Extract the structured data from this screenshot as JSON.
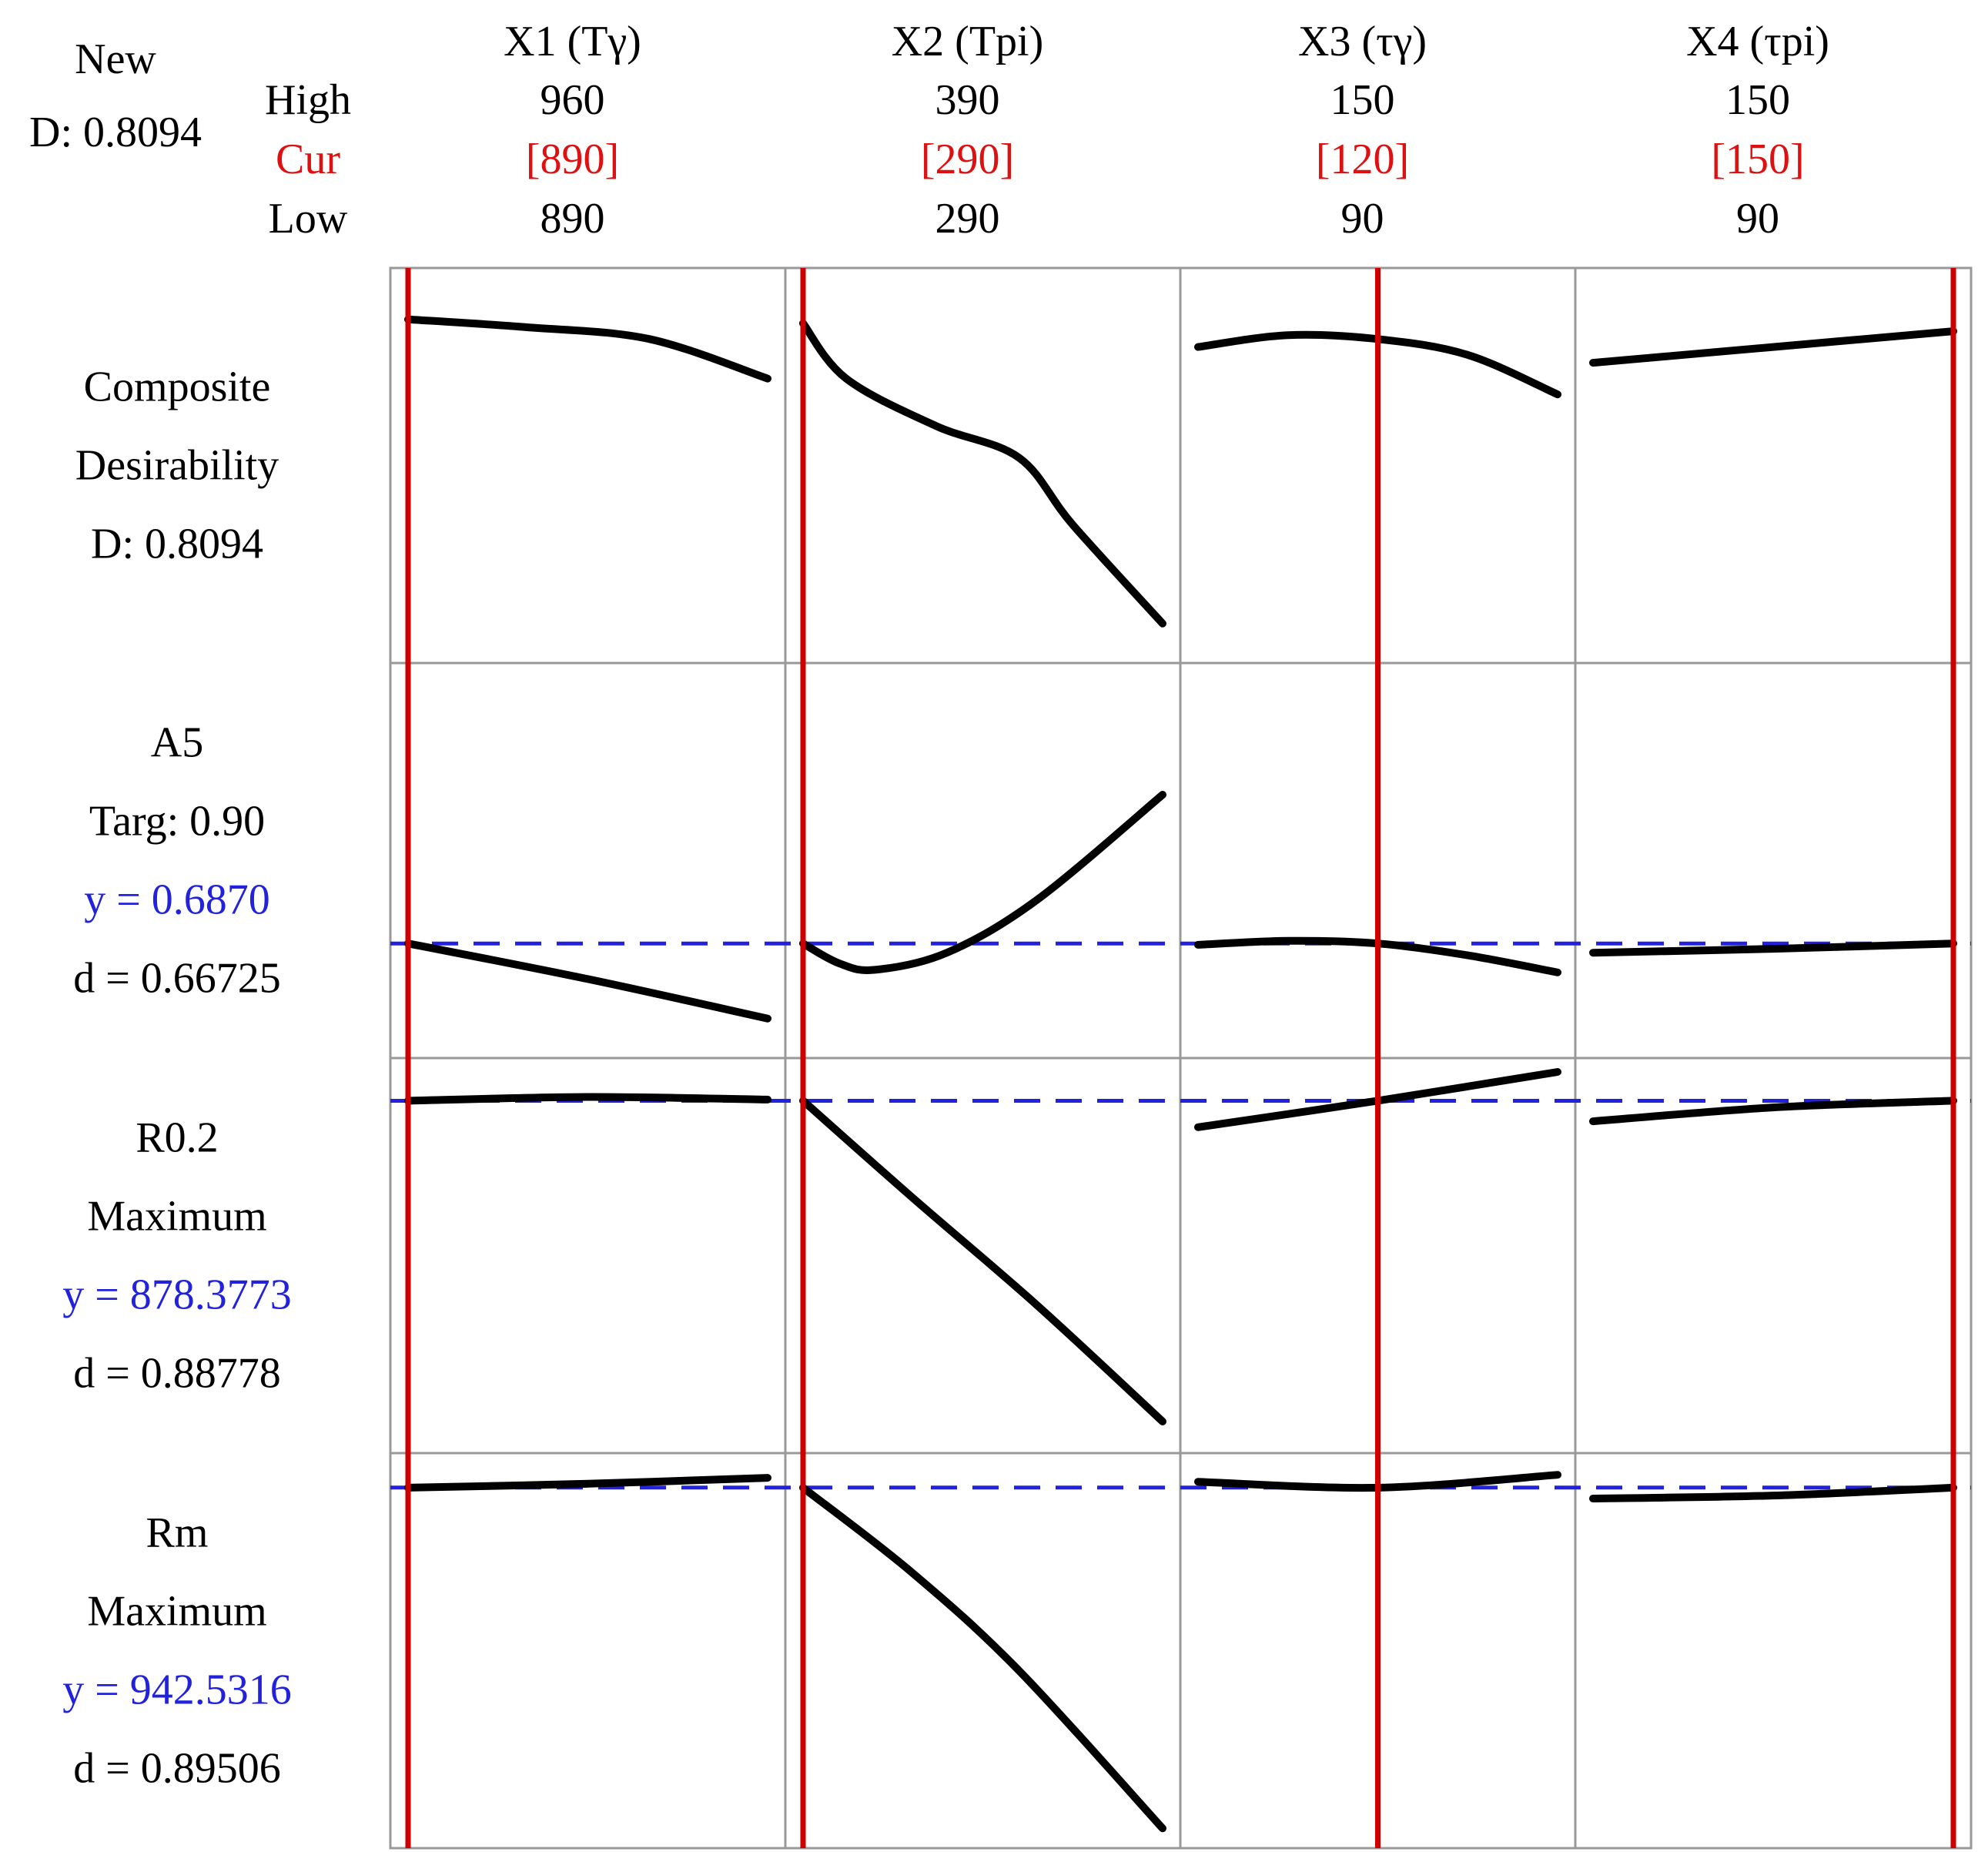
{
  "header": {
    "new_label": "New",
    "new_d": "D: 0.8094",
    "high_label": "High",
    "cur_label": "Cur",
    "low_label": "Low"
  },
  "factors": [
    {
      "name": "X1 (Tγ)",
      "high": "960",
      "cur": "[890]",
      "low": "890"
    },
    {
      "name": "X2 (Tpi)",
      "high": "390",
      "cur": "[290]",
      "low": "290"
    },
    {
      "name": "X3 (τγ)",
      "high": "150",
      "cur": "[120]",
      "low": "90"
    },
    {
      "name": "X4 (τpi)",
      "high": "150",
      "cur": "[150]",
      "low": "90"
    }
  ],
  "responses": [
    {
      "lines": [
        "Composite",
        "Desirability",
        "D: 0.8094"
      ],
      "colors": [
        "#000000",
        "#000000",
        "#000000"
      ]
    },
    {
      "lines": [
        "A5",
        "Targ: 0.90",
        "y = 0.6870",
        "d = 0.66725"
      ],
      "colors": [
        "#000000",
        "#000000",
        "#2222dd",
        "#000000"
      ]
    },
    {
      "lines": [
        "R0.2",
        "Maximum",
        "y = 878.3773",
        "d = 0.88778"
      ],
      "colors": [
        "#000000",
        "#000000",
        "#2222dd",
        "#000000"
      ]
    },
    {
      "lines": [
        "Rm",
        "Maximum",
        "y = 942.5316",
        "d = 0.89506"
      ],
      "colors": [
        "#000000",
        "#000000",
        "#2222dd",
        "#000000"
      ]
    }
  ],
  "colors": {
    "current_line": "#cc0000",
    "predicted_line": "#2222dd",
    "cur_text": "#dd1111",
    "curve": "#000000",
    "grid": "#999999"
  },
  "chart_data": {
    "type": "line",
    "x_ranges": [
      [
        890,
        960
      ],
      [
        290,
        390
      ],
      [
        90,
        150
      ],
      [
        90,
        150
      ]
    ],
    "current": [
      890,
      290,
      120,
      150
    ],
    "rows": [
      {
        "response": "Composite Desirability",
        "predicted_level": null,
        "curves": [
          [
            [
              890,
              0.87
            ],
            [
              913,
              0.85
            ],
            [
              937,
              0.82
            ],
            [
              960,
              0.72
            ]
          ],
          [
            [
              290,
              0.86
            ],
            [
              302,
              0.72
            ],
            [
              327,
              0.6
            ],
            [
              350,
              0.52
            ],
            [
              365,
              0.35
            ],
            [
              390,
              0.1
            ]
          ],
          [
            [
              90,
              0.8
            ],
            [
              105,
              0.83
            ],
            [
              120,
              0.82
            ],
            [
              135,
              0.78
            ],
            [
              150,
              0.68
            ]
          ],
          [
            [
              90,
              0.76
            ],
            [
              120,
              0.8
            ],
            [
              150,
              0.84
            ]
          ]
        ]
      },
      {
        "response": "A5",
        "predicted_level": 0.687,
        "curves": [
          [
            [
              890,
              0.687
            ],
            [
              925,
              0.66
            ],
            [
              960,
              0.63
            ]
          ],
          [
            [
              290,
              0.687
            ],
            [
              300,
              0.672
            ],
            [
              310,
              0.667
            ],
            [
              330,
              0.68
            ],
            [
              355,
              0.72
            ],
            [
              390,
              0.8
            ]
          ],
          [
            [
              90,
              0.686
            ],
            [
              105,
              0.689
            ],
            [
              120,
              0.687
            ],
            [
              135,
              0.678
            ],
            [
              150,
              0.665
            ]
          ],
          [
            [
              90,
              0.68
            ],
            [
              120,
              0.683
            ],
            [
              150,
              0.687
            ]
          ]
        ]
      },
      {
        "response": "R0.2",
        "predicted_level": 878.3773,
        "curves": [
          [
            [
              890,
              878.4
            ],
            [
              925,
              880.3
            ],
            [
              960,
              879.0
            ]
          ],
          [
            [
              290,
              878.4
            ],
            [
              320,
              830
            ],
            [
              355,
              775
            ],
            [
              390,
              716
            ]
          ],
          [
            [
              90,
              865
            ],
            [
              120,
              878.4
            ],
            [
              150,
              893
            ]
          ],
          [
            [
              90,
              868
            ],
            [
              120,
              875
            ],
            [
              150,
              878.4
            ]
          ]
        ]
      },
      {
        "response": "Rm",
        "predicted_level": 942.5316,
        "curves": [
          [
            [
              890,
              942.5
            ],
            [
              925,
              944.5
            ],
            [
              960,
              947.5
            ]
          ],
          [
            [
              290,
              942.5
            ],
            [
              320,
              900
            ],
            [
              350,
              850
            ],
            [
              390,
              770
            ]
          ],
          [
            [
              90,
              945.5
            ],
            [
              120,
              942.5
            ],
            [
              150,
              949
            ]
          ],
          [
            [
              90,
              937
            ],
            [
              120,
              938.5
            ],
            [
              150,
              942.5
            ]
          ]
        ]
      }
    ]
  }
}
